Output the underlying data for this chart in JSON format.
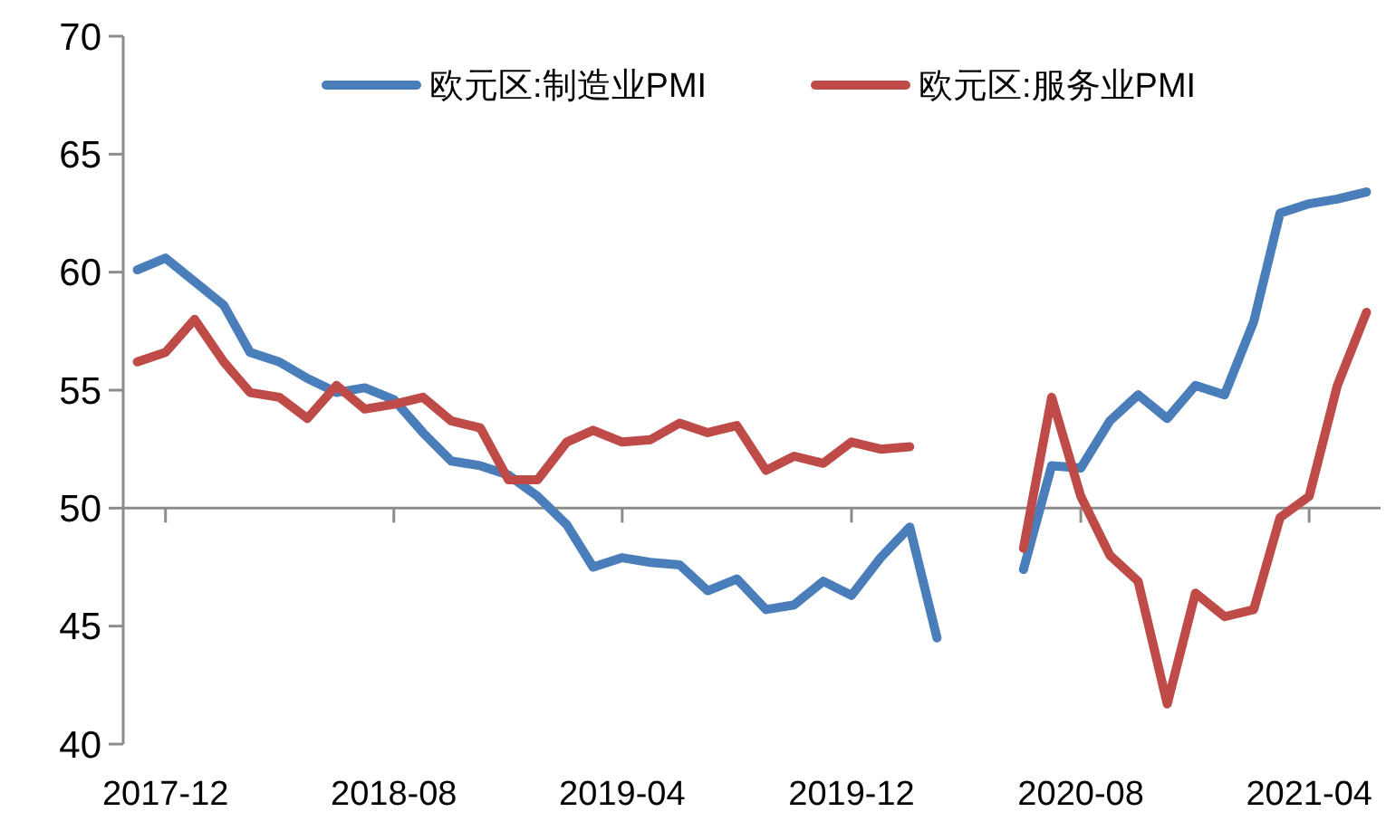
{
  "chart_data": {
    "type": "line",
    "x": [
      "2017-11",
      "2017-12",
      "2018-01",
      "2018-02",
      "2018-03",
      "2018-04",
      "2018-05",
      "2018-06",
      "2018-07",
      "2018-08",
      "2018-09",
      "2018-10",
      "2018-11",
      "2018-12",
      "2019-01",
      "2019-02",
      "2019-03",
      "2019-04",
      "2019-05",
      "2019-06",
      "2019-07",
      "2019-08",
      "2019-09",
      "2019-10",
      "2019-11",
      "2019-12",
      "2020-01",
      "2020-02",
      "2020-03",
      "2020-04",
      "2020-05",
      "2020-06",
      "2020-07",
      "2020-08",
      "2020-09",
      "2020-10",
      "2020-11",
      "2020-12",
      "2021-01",
      "2021-02",
      "2021-03",
      "2021-04",
      "2021-05",
      "2021-06"
    ],
    "series": [
      {
        "name": "欧元区:制造业PMI",
        "color": "#4a7ebb",
        "values": [
          60.1,
          60.6,
          59.6,
          58.6,
          56.6,
          56.2,
          55.5,
          54.9,
          55.1,
          54.6,
          53.2,
          52.0,
          51.8,
          51.4,
          50.5,
          49.3,
          47.5,
          47.9,
          47.7,
          47.6,
          46.5,
          47.0,
          45.7,
          45.9,
          46.9,
          46.3,
          47.9,
          49.2,
          44.5,
          null,
          null,
          47.4,
          51.8,
          51.7,
          53.7,
          54.8,
          53.8,
          55.2,
          54.8,
          57.9,
          62.5,
          62.9,
          63.1,
          63.4
        ]
      },
      {
        "name": "欧元区:服务业PMI",
        "color": "#be4b48",
        "values": [
          56.2,
          56.6,
          58.0,
          56.2,
          54.9,
          54.7,
          53.8,
          55.2,
          54.2,
          54.4,
          54.7,
          53.7,
          53.4,
          51.2,
          51.2,
          52.8,
          53.3,
          52.8,
          52.9,
          53.6,
          53.2,
          53.5,
          51.6,
          52.2,
          51.9,
          52.8,
          52.5,
          52.6,
          null,
          null,
          null,
          48.3,
          54.7,
          50.5,
          48.0,
          46.9,
          41.7,
          46.4,
          45.4,
          45.7,
          49.6,
          50.5,
          55.2,
          58.3
        ]
      }
    ],
    "xlim": [
      "2017-10-17",
      "2021-06-16"
    ],
    "xticks": [
      {
        "value": "2017-12",
        "label": "2017-12"
      },
      {
        "value": "2018-08",
        "label": "2018-08"
      },
      {
        "value": "2019-04",
        "label": "2019-04"
      },
      {
        "value": "2019-12",
        "label": "2019-12"
      },
      {
        "value": "2020-08",
        "label": "2020-08"
      },
      {
        "value": "2021-04",
        "label": "2021-04"
      }
    ],
    "ylim": [
      40,
      70
    ],
    "yticks": [
      40,
      45,
      50,
      55,
      60,
      65,
      70
    ],
    "ref_lines": [
      {
        "axis": "y",
        "value": 50,
        "color": "#8c8c8c"
      }
    ],
    "legend": "top",
    "grid": false,
    "marker": "none",
    "line_style": "solid"
  }
}
